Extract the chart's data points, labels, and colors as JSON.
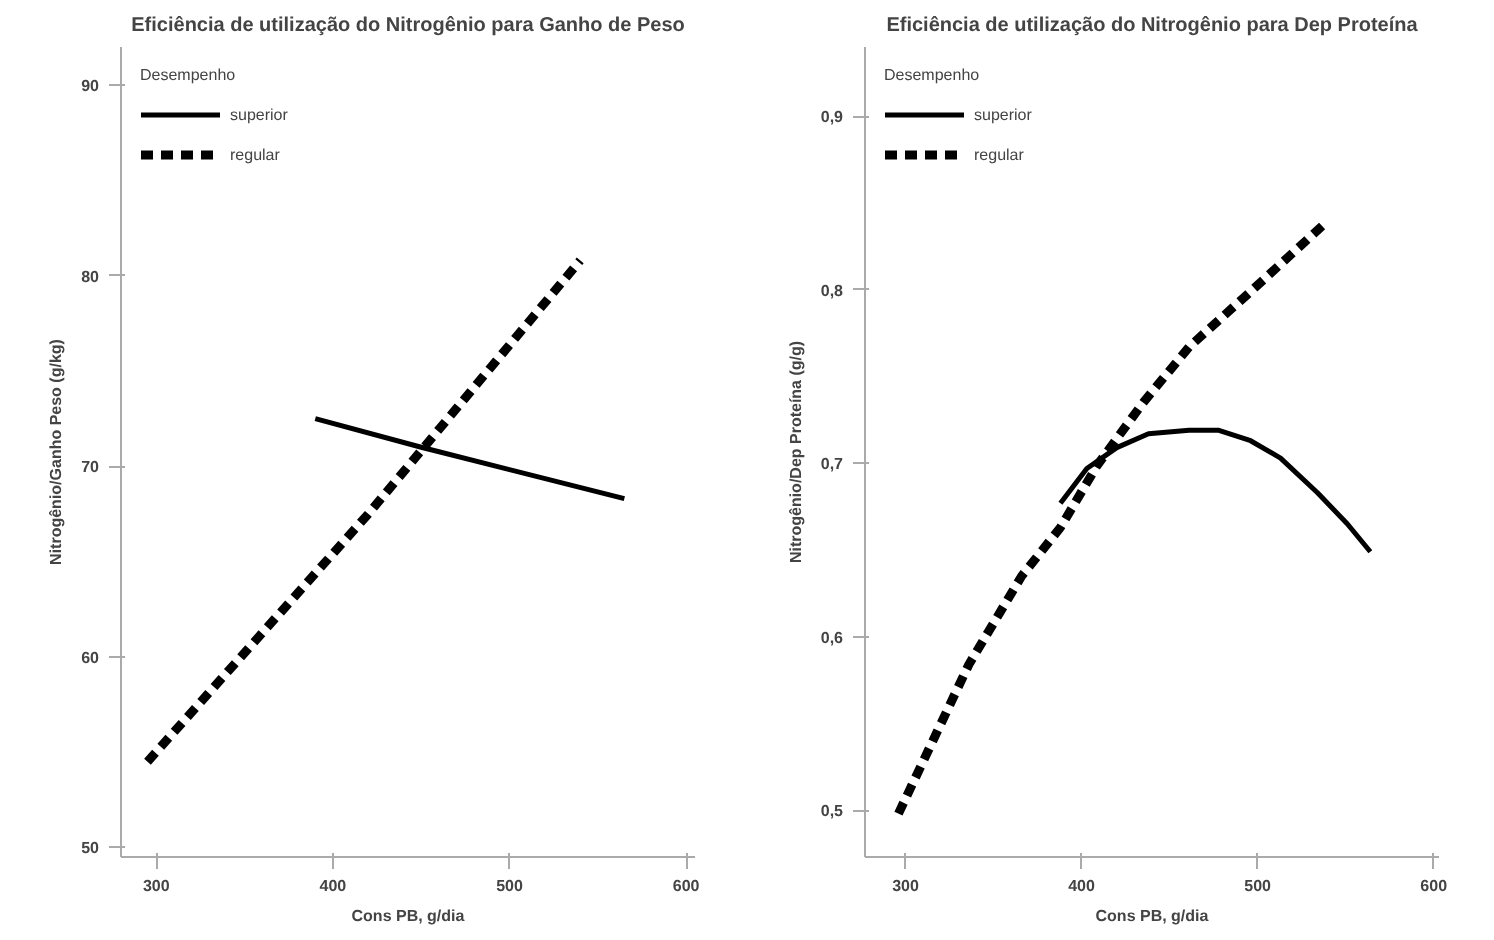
{
  "chart_data": [
    {
      "type": "line",
      "title": "Eficiência de utilização do Nitrogênio para Ganho de Peso",
      "xlabel": "Cons PB, g/dia",
      "ylabel": "Nitrogênio/Ganho Peso (g/kg)",
      "legend_title": "Desempenho",
      "legend": "top left",
      "grid": false,
      "xlim": [
        280,
        605
      ],
      "ylim": [
        49.5,
        92
      ],
      "xticks": [
        300,
        400,
        500,
        600
      ],
      "yticks": [
        50,
        60,
        70,
        80,
        90
      ],
      "series": [
        {
          "name": "superior",
          "color": "#000000",
          "line_style": "solid",
          "x": [
            390,
            450,
            565
          ],
          "values": [
            72.5,
            71.0,
            68.3
          ]
        },
        {
          "name": "regular",
          "color": "#000000",
          "line_style": "dashed",
          "x": [
            295,
            420,
            540
          ],
          "values": [
            54.5,
            67.5,
            80.8
          ]
        }
      ]
    },
    {
      "type": "line",
      "title": "Eficiência de utilização do Nitrogênio para Dep Proteína",
      "xlabel": "Cons PB, g/dia",
      "ylabel": "Nitrogênio/Dep Proteína (g/g)",
      "legend_title": "Desempenho",
      "legend": "top left",
      "grid": false,
      "xlim": [
        277,
        603
      ],
      "ylim": [
        0.473,
        0.94
      ],
      "xticks": [
        300,
        400,
        500,
        600
      ],
      "yticks": [
        {
          "value": 0.5,
          "label": "0,5"
        },
        {
          "value": 0.6,
          "label": "0,6"
        },
        {
          "value": 0.7,
          "label": "0,7"
        },
        {
          "value": 0.8,
          "label": "0,8"
        },
        {
          "value": 0.9,
          "label": "0,9"
        }
      ],
      "series": [
        {
          "name": "superior",
          "color": "#000000",
          "line_style": "solid",
          "x": [
            388,
            403,
            420,
            438,
            461,
            478,
            496,
            513,
            534,
            551,
            564
          ],
          "values": [
            0.677,
            0.697,
            0.709,
            0.717,
            0.719,
            0.719,
            0.713,
            0.703,
            0.683,
            0.665,
            0.649
          ]
        },
        {
          "name": "regular",
          "color": "#000000",
          "line_style": "dashed",
          "x": [
            296,
            336,
            366,
            388,
            409,
            435,
            461,
            496,
            539
          ],
          "values": [
            0.498,
            0.584,
            0.635,
            0.663,
            0.699,
            0.735,
            0.767,
            0.799,
            0.839
          ]
        }
      ]
    }
  ]
}
